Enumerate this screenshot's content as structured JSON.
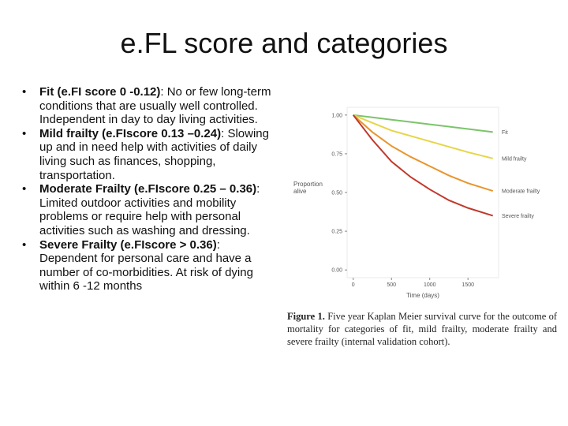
{
  "title": "e.FL score and categories",
  "bullets": [
    {
      "bold": "Fit (e.FI score 0 -0.12)",
      "text": ": No or few long-term conditions that are usually well controlled. Independent in day to day living activities."
    },
    {
      "bold": "Mild frailty (e.FIscore 0.13 –0.24)",
      "text": ": Slowing up and in need help with activities of daily living such as finances, shopping, transportation."
    },
    {
      "bold": "Moderate Frailty (e.FIscore 0.25 – 0.36)",
      "text": ": Limited outdoor activities and mobility problems or require help with personal activities such as washing and dressing."
    },
    {
      "bold": "Severe Frailty (e.FIscore > 0.36)",
      "text": ": Dependent for personal care and have a number of co-morbidities. At risk of dying within 6 -12 months"
    }
  ],
  "chart_data": {
    "type": "line",
    "y_label_lines": [
      "Proportion",
      "alive"
    ],
    "x_label": "Time (days)",
    "caption_label": "Figure 1.",
    "caption": "Five year Kaplan Meier survival curve for the outcome of mortality for categories of fit, mild frailty, moderate frailty and severe frailty (internal validation cohort).",
    "x": [
      0,
      250,
      500,
      750,
      1000,
      1250,
      1500,
      1825
    ],
    "series": [
      {
        "name": "Fit",
        "color": "#7cc46a",
        "values": [
          1.0,
          0.985,
          0.97,
          0.955,
          0.94,
          0.925,
          0.91,
          0.89
        ]
      },
      {
        "name": "Mild frailty",
        "color": "#e6d548",
        "values": [
          1.0,
          0.95,
          0.9,
          0.865,
          0.83,
          0.795,
          0.76,
          0.72
        ]
      },
      {
        "name": "Moderate frailty",
        "color": "#e8952c",
        "values": [
          1.0,
          0.89,
          0.8,
          0.73,
          0.67,
          0.61,
          0.56,
          0.51
        ]
      },
      {
        "name": "Severe frailty",
        "color": "#c0392b",
        "values": [
          1.0,
          0.84,
          0.7,
          0.6,
          0.52,
          0.45,
          0.4,
          0.35
        ]
      }
    ],
    "xlim": [
      -80,
      1900
    ],
    "ylim": [
      -0.05,
      1.05
    ],
    "xticks": [
      0,
      500,
      1000,
      1500
    ],
    "yticks": [
      {
        "value": 0,
        "label": "0.00"
      },
      {
        "value": 0.25,
        "label": "0.25"
      },
      {
        "value": 0.5,
        "label": "0.50"
      },
      {
        "value": 0.75,
        "label": "0.75"
      },
      {
        "value": 1,
        "label": "1.00"
      }
    ]
  }
}
